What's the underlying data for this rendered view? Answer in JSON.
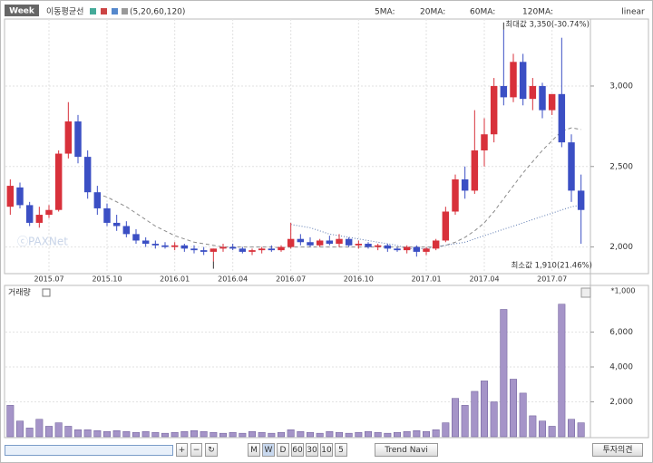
{
  "ui": {
    "period_button": "Week",
    "ma_title": "이동평균선",
    "ma_params": "(5,20,60,120)",
    "ma_labels": [
      "5MA:",
      "20MA:",
      "60MA:",
      "120MA:"
    ],
    "scale": "linear",
    "watermark": "ⓒPAXNet",
    "volume_title": "거래량",
    "volume_unit": "*1,000",
    "toolbar": [
      "M",
      "W",
      "D",
      "60",
      "30",
      "10",
      "5"
    ],
    "trend": "Trend Navi",
    "opinion": "투자의견"
  },
  "chart_data": [
    {
      "type": "candlestick",
      "max_label": "최대값 3,350(-30.74%)",
      "min_label": "최소값 1,910(21.46%)",
      "categories": [
        null,
        null,
        null,
        null,
        "2015.07",
        null,
        null,
        null,
        null,
        null,
        "2015.10",
        null,
        null,
        null,
        null,
        null,
        null,
        "2016.01",
        null,
        null,
        null,
        null,
        null,
        "2016.04",
        null,
        null,
        null,
        null,
        null,
        "2016.07",
        null,
        null,
        null,
        null,
        null,
        null,
        "2016.10",
        null,
        null,
        null,
        null,
        null,
        null,
        "2017.01",
        null,
        null,
        null,
        null,
        null,
        "2017.04",
        null,
        null,
        null,
        null,
        null,
        null,
        "2017.07",
        null,
        null,
        null
      ],
      "open": [
        2250,
        2370,
        2260,
        2150,
        2200,
        2230,
        2580,
        2780,
        2560,
        2340,
        2240,
        2150,
        2130,
        2080,
        2040,
        2020,
        2010,
        2000,
        2010,
        1990,
        1980,
        1970,
        1990,
        2000,
        1990,
        1970,
        1980,
        1990,
        1980,
        2000,
        2050,
        2030,
        2010,
        2040,
        2020,
        2050,
        2010,
        2020,
        2000,
        2010,
        1990,
        1980,
        2000,
        1970,
        1990,
        2040,
        2220,
        2420,
        2350,
        2600,
        2700,
        3000,
        2930,
        3150,
        2920,
        3000,
        2850,
        2950,
        2650,
        2350
      ],
      "high": [
        2420,
        2400,
        2280,
        2250,
        2260,
        2600,
        2900,
        2820,
        2600,
        2380,
        2270,
        2200,
        2160,
        2110,
        2060,
        2040,
        2030,
        2030,
        2020,
        2010,
        2000,
        1990,
        2020,
        2020,
        2000,
        1990,
        2000,
        2010,
        2010,
        2150,
        2080,
        2060,
        2050,
        2070,
        2080,
        2060,
        2040,
        2030,
        2020,
        2020,
        2000,
        2010,
        2010,
        2000,
        2050,
        2250,
        2450,
        2500,
        2850,
        2800,
        3050,
        3350,
        3200,
        3200,
        3050,
        3020,
        2950,
        3300,
        2700,
        2450
      ],
      "low": [
        2200,
        2240,
        2130,
        2120,
        2180,
        2220,
        2550,
        2520,
        2300,
        2200,
        2130,
        2100,
        2060,
        2020,
        2000,
        1990,
        1990,
        1980,
        1970,
        1960,
        1950,
        1910,
        1970,
        1980,
        1960,
        1950,
        1960,
        1970,
        1970,
        1990,
        2010,
        2000,
        2000,
        2010,
        2000,
        2000,
        1990,
        1990,
        1980,
        1970,
        1970,
        1960,
        1940,
        1950,
        1980,
        2030,
        2200,
        2300,
        2330,
        2500,
        2650,
        2880,
        2900,
        2880,
        2850,
        2800,
        2820,
        2620,
        2280,
        2020
      ],
      "close": [
        2380,
        2260,
        2150,
        2200,
        2230,
        2580,
        2780,
        2560,
        2340,
        2240,
        2150,
        2130,
        2080,
        2040,
        2020,
        2010,
        2000,
        2010,
        1990,
        1980,
        1970,
        1990,
        2000,
        1990,
        1970,
        1980,
        1990,
        1980,
        2000,
        2050,
        2030,
        2010,
        2040,
        2020,
        2050,
        2010,
        2020,
        2000,
        2010,
        1990,
        1980,
        2000,
        1970,
        1990,
        2040,
        2220,
        2420,
        2350,
        2600,
        2700,
        3000,
        2930,
        3150,
        2920,
        3000,
        2850,
        2950,
        2650,
        2350,
        2230
      ],
      "up_color": "#d8313b",
      "down_color": "#3b4fc4",
      "series": [
        {
          "color": "#8a8a8a",
          "values": [
            null,
            null,
            null,
            null,
            null,
            null,
            null,
            null,
            null,
            2330,
            2310,
            2280,
            2250,
            2210,
            2170,
            2130,
            2100,
            2070,
            2050,
            2030,
            2020,
            2010,
            2000,
            2000,
            2000,
            2000,
            2000,
            2000,
            1995,
            2000,
            2000,
            2000,
            2000,
            2000,
            2000,
            2000,
            2000,
            2000,
            2000,
            2000,
            2000,
            2000,
            2000,
            2000,
            2000,
            2010,
            2030,
            2060,
            2100,
            2150,
            2220,
            2300,
            2380,
            2460,
            2530,
            2600,
            2660,
            2720,
            2740,
            2730
          ]
        },
        {
          "color": "#5a78b0",
          "values": [
            null,
            null,
            null,
            null,
            null,
            null,
            null,
            null,
            null,
            null,
            null,
            null,
            null,
            null,
            null,
            null,
            null,
            null,
            null,
            null,
            null,
            null,
            null,
            null,
            null,
            null,
            null,
            null,
            null,
            2140,
            2130,
            2120,
            2100,
            2080,
            2070,
            2060,
            2050,
            2040,
            2030,
            2020,
            2010,
            1990,
            1990,
            1990,
            2000,
            2010,
            2020,
            2030,
            2050,
            2070,
            2090,
            2110,
            2130,
            2150,
            2170,
            2190,
            2210,
            2230,
            2250,
            2260
          ]
        }
      ],
      "ylim": [
        1840,
        3360
      ],
      "yticks": [
        {
          "value": 2000,
          "label": "2,000"
        },
        {
          "value": 2500,
          "label": "2,500"
        },
        {
          "value": 3000,
          "label": "3,000"
        }
      ],
      "grid": true
    },
    {
      "type": "bar",
      "values": [
        1800,
        900,
        500,
        1000,
        600,
        800,
        600,
        400,
        400,
        350,
        300,
        350,
        300,
        250,
        300,
        250,
        200,
        250,
        300,
        350,
        300,
        250,
        200,
        250,
        200,
        300,
        250,
        200,
        250,
        400,
        300,
        250,
        200,
        300,
        250,
        200,
        250,
        300,
        250,
        200,
        250,
        300,
        350,
        300,
        400,
        800,
        2200,
        1800,
        2600,
        3200,
        2000,
        7300,
        3300,
        2500,
        1200,
        900,
        600,
        7600,
        1000,
        800
      ],
      "color": "#a594c8",
      "ylim": [
        0,
        8260
      ],
      "yticks": [
        {
          "value": 2000,
          "label": "2,000"
        },
        {
          "value": 4000,
          "label": "4,000"
        },
        {
          "value": 6000,
          "label": "6,000"
        }
      ],
      "grid": true
    }
  ]
}
